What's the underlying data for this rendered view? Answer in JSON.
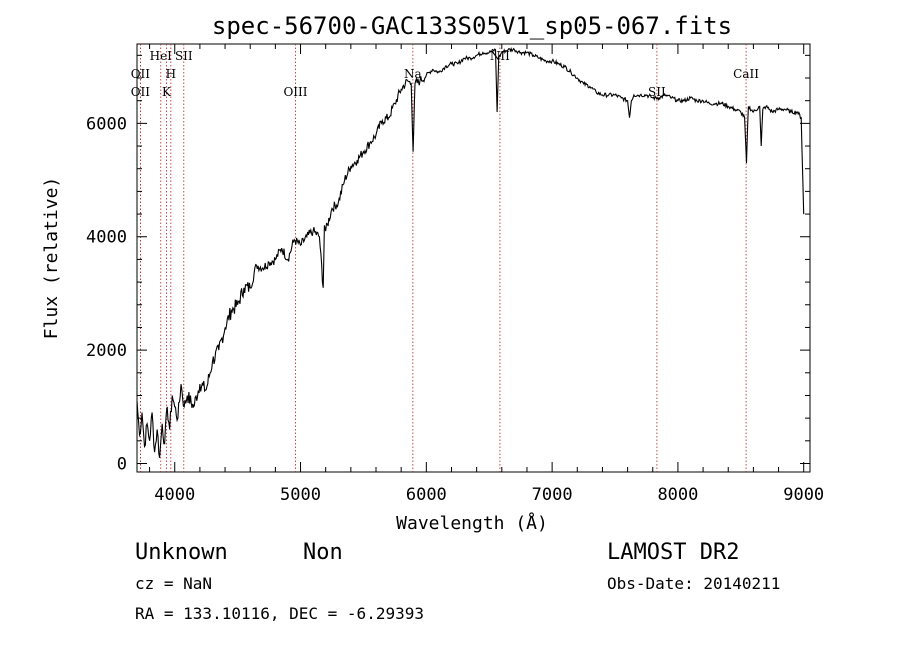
{
  "chart_data": {
    "type": "line",
    "title": "spec-56700-GAC133S05V1_sp05-067.fits",
    "xlabel": "Wavelength (Å)",
    "ylabel": "Flux (relative)",
    "xlim": [
      3700,
      9050
    ],
    "ylim": [
      -150,
      7400
    ],
    "xticks": [
      4000,
      5000,
      6000,
      7000,
      8000,
      9000
    ],
    "yticks": [
      0,
      2000,
      4000,
      6000
    ],
    "grid": false,
    "spectral_lines": [
      {
        "label": "OII",
        "x": 3727,
        "row": 2
      },
      {
        "label": "OII",
        "x": 3727,
        "row": 3
      },
      {
        "label": "HeI",
        "x": 3889,
        "row": 1
      },
      {
        "label": "K",
        "x": 3934,
        "row": 3
      },
      {
        "label": "H",
        "x": 3969,
        "row": 2
      },
      {
        "label": "SII",
        "x": 4072,
        "row": 1
      },
      {
        "label": "OIII",
        "x": 4960,
        "row": 3
      },
      {
        "label": "Na",
        "x": 5893,
        "row": 2
      },
      {
        "label": "NII",
        "x": 6585,
        "row": 1
      },
      {
        "label": "SII",
        "x": 7833,
        "row": 3
      },
      {
        "label": "CaII",
        "x": 8542,
        "row": 2
      }
    ],
    "series": [
      {
        "x": [
          3700,
          3720,
          3740,
          3760,
          3780,
          3800,
          3820,
          3840,
          3860,
          3880,
          3900,
          3920,
          3940,
          3960,
          3980,
          4000,
          4025,
          4050,
          4075,
          4100,
          4150,
          4200,
          4250,
          4300,
          4350,
          4400,
          4450,
          4500,
          4550,
          4600,
          4650,
          4700,
          4750,
          4800,
          4850,
          4900,
          4950,
          5000,
          5050,
          5100,
          5150,
          5180,
          5190,
          5200,
          5250,
          5300,
          5350,
          5400,
          5450,
          5500,
          5550,
          5600,
          5650,
          5700,
          5750,
          5800,
          5850,
          5880,
          5895,
          5910,
          5950,
          6000,
          6050,
          6100,
          6150,
          6200,
          6250,
          6300,
          6350,
          6400,
          6450,
          6500,
          6550,
          6563,
          6575,
          6600,
          6650,
          6700,
          6750,
          6800,
          6850,
          6900,
          6950,
          7000,
          7050,
          7100,
          7150,
          7200,
          7250,
          7300,
          7350,
          7400,
          7450,
          7500,
          7550,
          7600,
          7615,
          7630,
          7650,
          7700,
          7750,
          7800,
          7850,
          7900,
          7950,
          8000,
          8050,
          8100,
          8150,
          8200,
          8250,
          8300,
          8350,
          8400,
          8450,
          8500,
          8530,
          8545,
          8560,
          8600,
          8650,
          8662,
          8675,
          8700,
          8750,
          8800,
          8850,
          8900,
          8950,
          8980,
          9000
        ],
        "y": [
          1100,
          500,
          900,
          300,
          700,
          400,
          900,
          200,
          600,
          100,
          700,
          350,
          1000,
          600,
          1200,
          1000,
          800,
          1400,
          1000,
          1200,
          1000,
          1400,
          1300,
          1800,
          2000,
          2400,
          2700,
          2800,
          3100,
          3100,
          3500,
          3450,
          3550,
          3600,
          3800,
          3600,
          3950,
          3850,
          4000,
          4100,
          4000,
          3100,
          4200,
          4100,
          4500,
          4600,
          5000,
          5250,
          5350,
          5500,
          5650,
          5800,
          6050,
          6100,
          6350,
          6600,
          6750,
          6700,
          5500,
          6700,
          6750,
          6850,
          6950,
          6900,
          7000,
          7050,
          7050,
          7150,
          7150,
          7200,
          7250,
          7250,
          7300,
          6200,
          7150,
          7250,
          7300,
          7300,
          7250,
          7250,
          7200,
          7150,
          7100,
          7100,
          7050,
          7000,
          6900,
          6800,
          6700,
          6650,
          6550,
          6500,
          6500,
          6500,
          6450,
          6400,
          6100,
          6400,
          6500,
          6500,
          6500,
          6450,
          6450,
          6500,
          6450,
          6400,
          6400,
          6450,
          6400,
          6400,
          6350,
          6350,
          6350,
          6300,
          6250,
          6200,
          6100,
          5300,
          6300,
          6200,
          6300,
          5600,
          6250,
          6300,
          6200,
          6250,
          6250,
          6200,
          6200,
          6100,
          4400
        ]
      }
    ]
  },
  "info": {
    "object_class": "Unknown",
    "subclass": "Non",
    "survey": "LAMOST DR2",
    "cz": "cz = NaN",
    "obs_date": "Obs-Date: 20140211",
    "coords": "RA = 133.10116, DEC =  -6.29393"
  }
}
